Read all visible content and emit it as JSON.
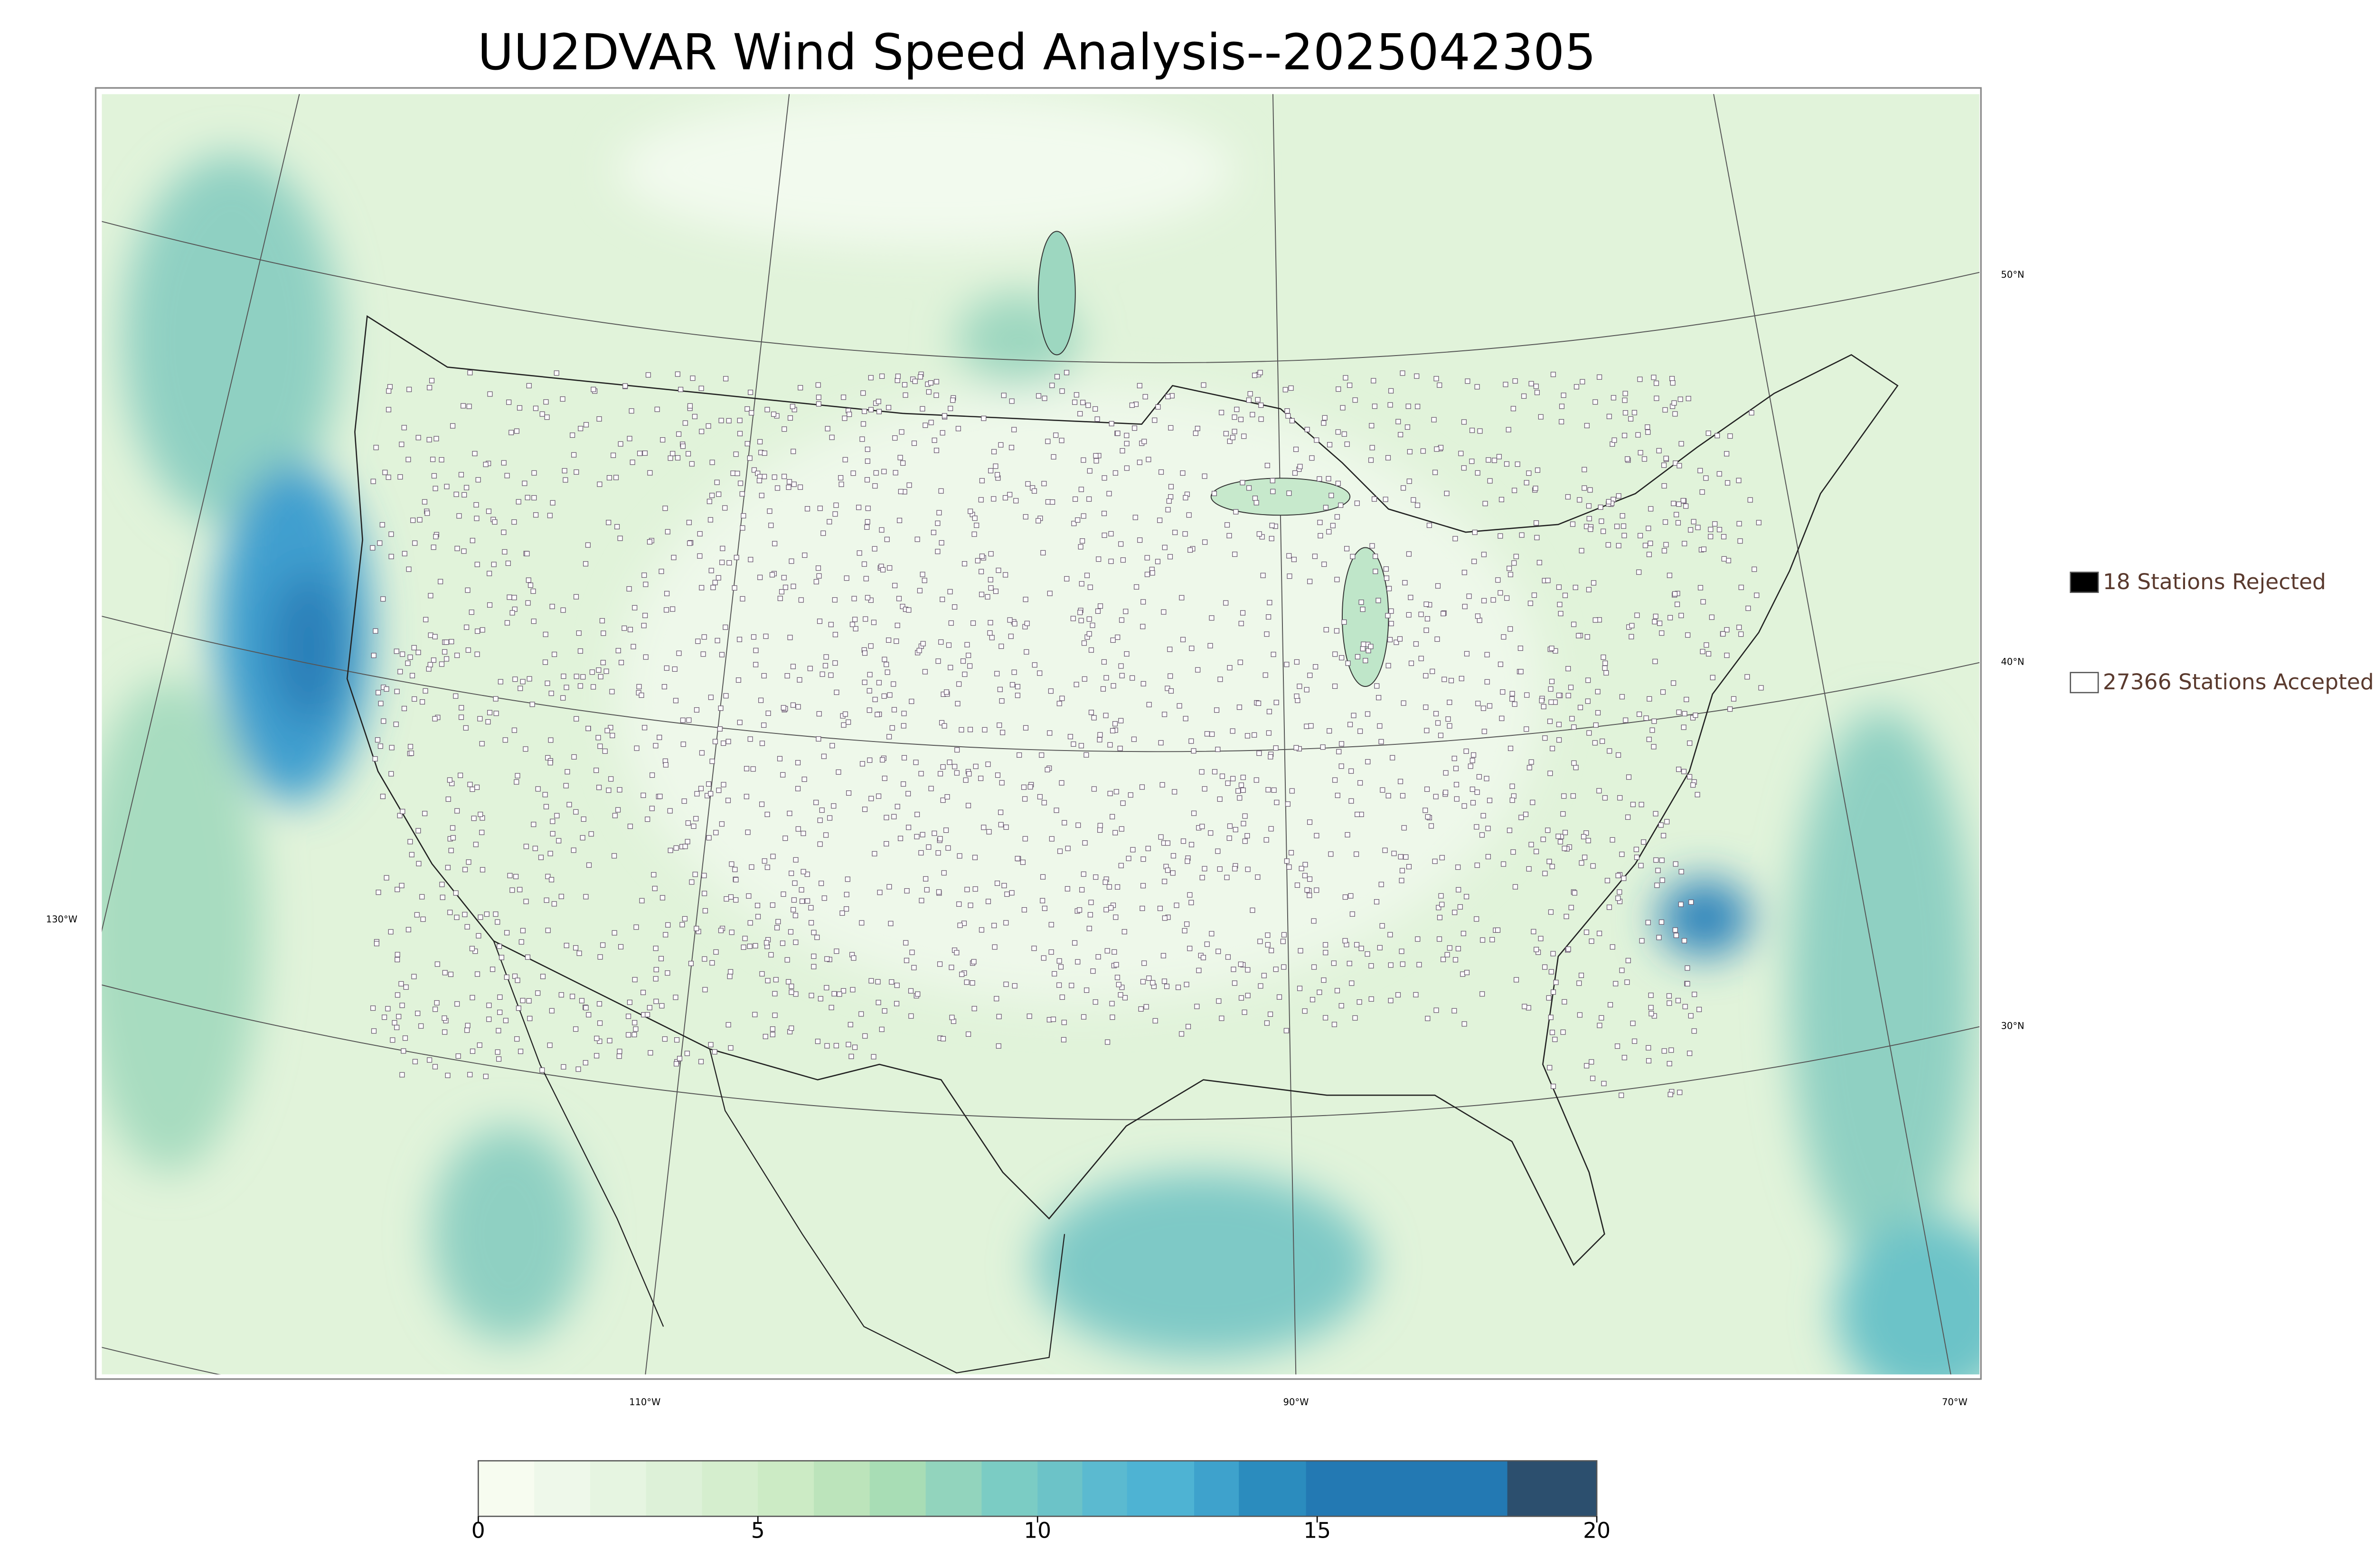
{
  "title": "UU2DVAR Wind Speed Analysis--2025042305",
  "legend": [
    {
      "label": "18 Stations Rejected",
      "color": "#000000"
    },
    {
      "label": "27366 Stations Accepted",
      "color": "#ffffff"
    }
  ],
  "latitude_labels": [
    "50°N",
    "40°N",
    "30°N"
  ],
  "longitude_labels": [
    "130°W",
    "110°W",
    "90°W",
    "70°W"
  ],
  "colorbar": {
    "lim": [
      0,
      20
    ],
    "ticks": [
      0,
      5,
      10,
      15,
      20
    ],
    "levels": [
      0,
      1,
      2,
      3,
      4,
      5,
      6,
      7,
      8,
      9,
      10,
      10.8,
      11.6,
      12.8,
      13.6,
      14.8,
      18.4,
      20
    ],
    "colors": [
      "#f7fcf0",
      "#eef8ea",
      "#e6f5e1",
      "#ddf1d8",
      "#d5eece",
      "#ccebc5",
      "#bce4bb",
      "#a8ddb5",
      "#92d4bd",
      "#7bccc4",
      "#6cc3c8",
      "#5bbad0",
      "#4eb3d3",
      "#3ea2cc",
      "#2b8cbe",
      "#2379b3",
      "#2c4f6e"
    ]
  }
}
